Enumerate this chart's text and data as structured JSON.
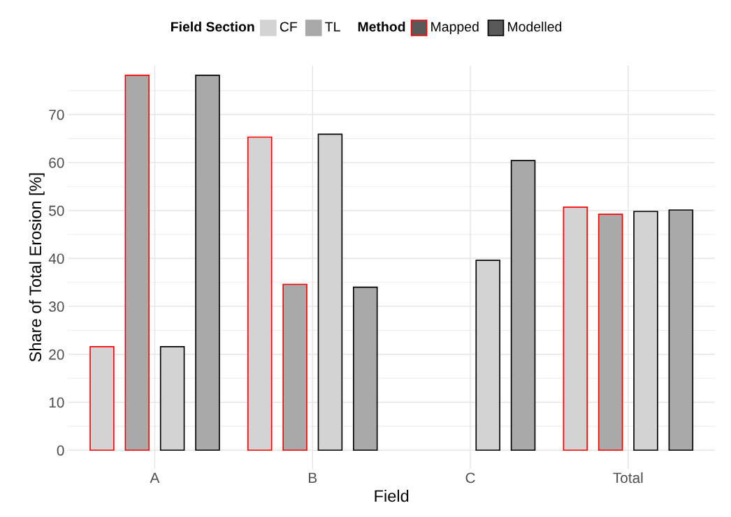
{
  "chart_data": {
    "type": "bar",
    "xlabel": "Field",
    "ylabel": "Share of Total Erosion [%]",
    "categories": [
      "A",
      "B",
      "C",
      "Total"
    ],
    "series": [
      {
        "color": "#d3d3d3",
        "values": [
          21.6,
          65.3,
          null,
          50.7
        ]
      },
      {
        "color": "#a9a9a9",
        "values": [
          78.2,
          34.6,
          null,
          49.2
        ]
      },
      {
        "color": "#d3d3d3",
        "values": [
          21.6,
          65.9,
          39.6,
          49.8
        ]
      },
      {
        "color": "#a9a9a9",
        "values": [
          78.2,
          34.0,
          60.4,
          50.1
        ]
      }
    ],
    "annotations": [
      "Field Section",
      "CF",
      "TL",
      "Method",
      "Mapped",
      "Modelled"
    ],
    "ylim": [
      -3.9,
      80.2
    ],
    "yticks": [
      0,
      {
        "value": 5,
        "label": null
      },
      10,
      {
        "value": 15,
        "label": null
      },
      20,
      {
        "value": 25,
        "label": null
      },
      30,
      {
        "value": 35,
        "label": null
      },
      40,
      {
        "value": 45,
        "label": null
      },
      50,
      {
        "value": 55,
        "label": null
      },
      60,
      {
        "value": 65,
        "label": null
      },
      70,
      {
        "value": 75,
        "label": null
      }
    ],
    "grid": true
  }
}
